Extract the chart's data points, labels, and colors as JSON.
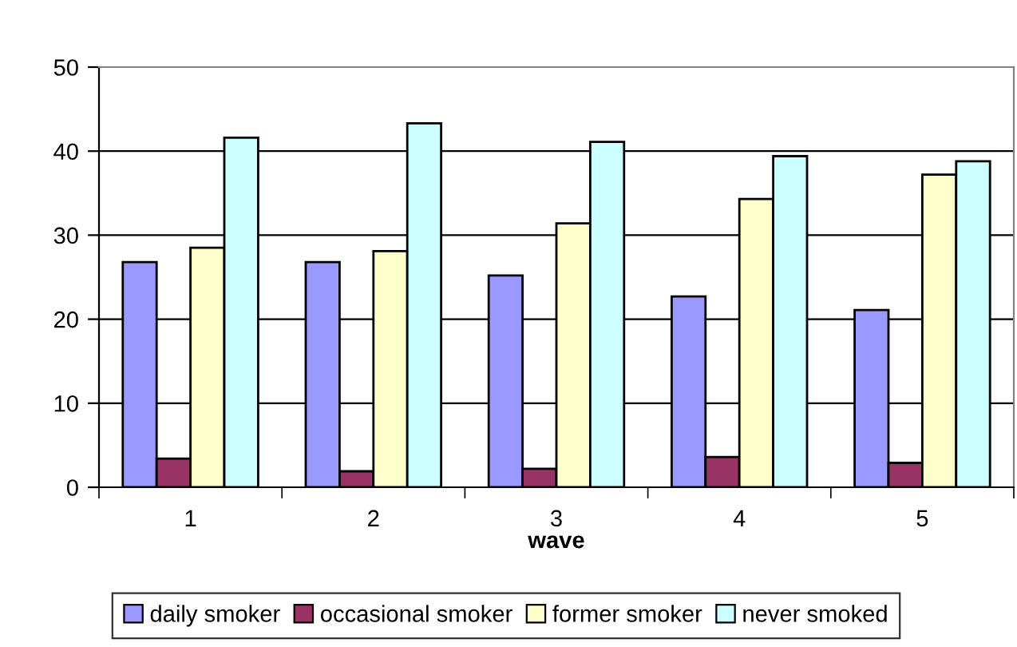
{
  "chart_data": {
    "type": "bar",
    "xlabel": "wave",
    "categories": [
      "1",
      "2",
      "3",
      "4",
      "5"
    ],
    "series": [
      {
        "name": "daily smoker",
        "color": "#9999ff",
        "values": [
          26.8,
          26.8,
          25.2,
          22.7,
          21.1
        ]
      },
      {
        "name": "occasional smoker",
        "color": "#993366",
        "values": [
          3.4,
          1.9,
          2.2,
          3.6,
          2.9
        ]
      },
      {
        "name": "former smoker",
        "color": "#ffffcc",
        "values": [
          28.5,
          28.1,
          31.4,
          34.3,
          37.2
        ]
      },
      {
        "name": "never smoked",
        "color": "#ccffff",
        "values": [
          41.6,
          43.3,
          41.1,
          39.4,
          38.8
        ]
      }
    ],
    "ylim": [
      0,
      50
    ],
    "yticks": [
      0,
      10,
      20,
      30,
      40,
      50
    ],
    "grid": "y",
    "legend": "bottom"
  }
}
